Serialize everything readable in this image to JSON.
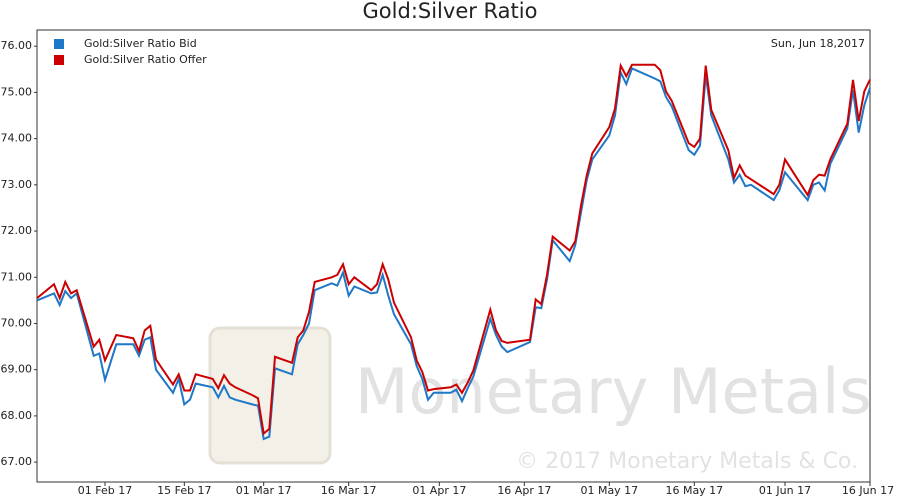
{
  "chart_data": {
    "type": "line",
    "title": "Gold:Silver Ratio",
    "annotation": "Sun, Jun 18,2017",
    "watermark": "Monetary Metals",
    "copyright": "© 2017 Monetary Metals & Co.",
    "x": [
      "2017-01-20",
      "2017-01-23",
      "2017-01-24",
      "2017-01-25",
      "2017-01-26",
      "2017-01-27",
      "2017-01-30",
      "2017-01-31",
      "2017-02-01",
      "2017-02-03",
      "2017-02-06",
      "2017-02-07",
      "2017-02-08",
      "2017-02-09",
      "2017-02-10",
      "2017-02-13",
      "2017-02-14",
      "2017-02-15",
      "2017-02-16",
      "2017-02-17",
      "2017-02-20",
      "2017-02-21",
      "2017-02-22",
      "2017-02-23",
      "2017-02-24",
      "2017-02-27",
      "2017-02-28",
      "2017-03-01",
      "2017-03-02",
      "2017-03-03",
      "2017-03-06",
      "2017-03-07",
      "2017-03-08",
      "2017-03-09",
      "2017-03-10",
      "2017-03-13",
      "2017-03-14",
      "2017-03-15",
      "2017-03-16",
      "2017-03-17",
      "2017-03-20",
      "2017-03-21",
      "2017-03-22",
      "2017-03-23",
      "2017-03-24",
      "2017-03-27",
      "2017-03-28",
      "2017-03-29",
      "2017-03-30",
      "2017-03-31",
      "2017-04-03",
      "2017-04-04",
      "2017-04-05",
      "2017-04-06",
      "2017-04-07",
      "2017-04-10",
      "2017-04-11",
      "2017-04-12",
      "2017-04-13",
      "2017-04-17",
      "2017-04-18",
      "2017-04-19",
      "2017-04-20",
      "2017-04-21",
      "2017-04-24",
      "2017-04-25",
      "2017-04-26",
      "2017-04-27",
      "2017-04-28",
      "2017-05-01",
      "2017-05-02",
      "2017-05-03",
      "2017-05-04",
      "2017-05-05",
      "2017-05-09",
      "2017-05-10",
      "2017-05-11",
      "2017-05-12",
      "2017-05-15",
      "2017-05-16",
      "2017-05-17",
      "2017-05-18",
      "2017-05-19",
      "2017-05-22",
      "2017-05-23",
      "2017-05-24",
      "2017-05-25",
      "2017-05-26",
      "2017-05-30",
      "2017-05-31",
      "2017-06-01",
      "2017-06-05",
      "2017-06-06",
      "2017-06-07",
      "2017-06-08",
      "2017-06-09",
      "2017-06-12",
      "2017-06-13",
      "2017-06-14",
      "2017-06-15",
      "2017-06-16"
    ],
    "series": [
      {
        "name": "Gold:Silver Ratio Bid",
        "color": "#1f77c8",
        "values": [
          70.5,
          70.65,
          70.4,
          70.7,
          70.55,
          70.65,
          69.3,
          69.35,
          68.78,
          69.55,
          69.55,
          69.3,
          69.65,
          69.7,
          69.0,
          68.5,
          68.8,
          68.25,
          68.35,
          68.7,
          68.62,
          68.4,
          68.65,
          68.4,
          68.35,
          68.25,
          68.22,
          67.5,
          67.55,
          69.03,
          68.9,
          69.55,
          69.75,
          70.0,
          70.72,
          70.87,
          70.82,
          71.1,
          70.6,
          70.8,
          70.65,
          70.67,
          71.05,
          70.6,
          70.2,
          69.55,
          69.08,
          68.8,
          68.35,
          68.5,
          68.5,
          68.57,
          68.32,
          68.6,
          68.85,
          70.1,
          69.75,
          69.5,
          69.38,
          69.6,
          70.35,
          70.33,
          70.95,
          71.8,
          71.35,
          71.7,
          72.4,
          73.1,
          73.55,
          74.07,
          74.5,
          75.43,
          75.18,
          75.52,
          75.3,
          75.24,
          74.9,
          74.7,
          73.75,
          73.65,
          73.85,
          75.38,
          74.5,
          73.55,
          73.05,
          73.22,
          72.97,
          73.0,
          72.67,
          72.88,
          73.27,
          72.67,
          73.0,
          73.05,
          72.88,
          73.45,
          74.22,
          75.05,
          74.13,
          74.72,
          75.1
        ]
      },
      {
        "name": "Gold:Silver Ratio Offer",
        "color": "#cc0000",
        "values": [
          70.55,
          70.85,
          70.55,
          70.9,
          70.65,
          70.72,
          69.5,
          69.65,
          69.2,
          69.75,
          69.68,
          69.4,
          69.85,
          69.95,
          69.22,
          68.68,
          68.9,
          68.55,
          68.55,
          68.9,
          68.8,
          68.6,
          68.88,
          68.7,
          68.62,
          68.45,
          68.38,
          67.62,
          67.72,
          69.28,
          69.15,
          69.7,
          69.85,
          70.25,
          70.9,
          71.0,
          71.05,
          71.28,
          70.85,
          71.0,
          70.72,
          70.85,
          71.28,
          70.95,
          70.45,
          69.7,
          69.2,
          68.95,
          68.55,
          68.58,
          68.62,
          68.68,
          68.5,
          68.72,
          68.98,
          70.3,
          69.85,
          69.62,
          69.58,
          69.65,
          70.52,
          70.42,
          71.05,
          71.88,
          71.58,
          71.78,
          72.55,
          73.2,
          73.68,
          74.25,
          74.65,
          75.58,
          75.35,
          75.6,
          75.6,
          75.48,
          75.02,
          74.82,
          73.9,
          73.82,
          74.0,
          75.58,
          74.62,
          73.75,
          73.15,
          73.42,
          73.2,
          73.12,
          72.8,
          73.0,
          73.55,
          72.78,
          73.1,
          73.22,
          73.2,
          73.55,
          74.32,
          75.27,
          74.38,
          75.02,
          75.28
        ]
      }
    ],
    "xlim": [
      "2017-01-20",
      "2017-06-16"
    ],
    "xticks": [
      {
        "value": "2017-02-01",
        "label": "01 Feb 17"
      },
      {
        "value": "2017-02-15",
        "label": "15 Feb 17"
      },
      {
        "value": "2017-03-01",
        "label": "01 Mar 17"
      },
      {
        "value": "2017-03-16",
        "label": "16 Mar 17"
      },
      {
        "value": "2017-04-01",
        "label": "01 Apr 17"
      },
      {
        "value": "2017-04-16",
        "label": "16 Apr 17"
      },
      {
        "value": "2017-05-01",
        "label": "01 May 17"
      },
      {
        "value": "2017-05-16",
        "label": "16 May 17"
      },
      {
        "value": "2017-06-01",
        "label": "01 Jun 17"
      },
      {
        "value": "2017-06-16",
        "label": "16 Jun 17"
      }
    ],
    "ylim": [
      66.57,
      76.35
    ],
    "yticks": [
      {
        "value": 67,
        "label": "67.00"
      },
      {
        "value": 68,
        "label": "68.00"
      },
      {
        "value": 69,
        "label": "69.00"
      },
      {
        "value": 70,
        "label": "70.00"
      },
      {
        "value": 71,
        "label": "71.00"
      },
      {
        "value": 72,
        "label": "72.00"
      },
      {
        "value": 73,
        "label": "73.00"
      },
      {
        "value": 74,
        "label": "74.00"
      },
      {
        "value": 75,
        "label": "75.00"
      },
      {
        "value": 76,
        "label": "76.00"
      }
    ],
    "legend": "top-left"
  }
}
